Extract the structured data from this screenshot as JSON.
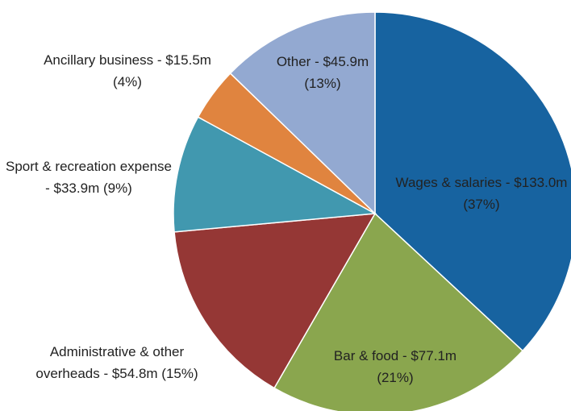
{
  "chart_data": {
    "type": "pie",
    "categories": [
      "Wages & salaries",
      "Bar & food",
      "Administrative & other overheads",
      "Sport & recreation expense",
      "Ancillary business",
      "Other"
    ],
    "values": [
      133.0,
      77.1,
      54.8,
      33.9,
      15.5,
      45.9
    ],
    "value_labels": [
      "Wages & salaries - $133.0m (37%)",
      "Bar & food - $77.1m (21%)",
      "Administrative & other overheads - $54.8m (15%)",
      "Sport & recreation expense - $33.9m (9%)",
      "Ancillary business - $15.5m (4%)",
      "Other - $45.9m (13%)"
    ],
    "colors": [
      "#1763a0",
      "#8aa64e",
      "#953735",
      "#4198af",
      "#e0843f",
      "#93a9d1"
    ],
    "start_angle": "top",
    "direction": "clockwise"
  }
}
